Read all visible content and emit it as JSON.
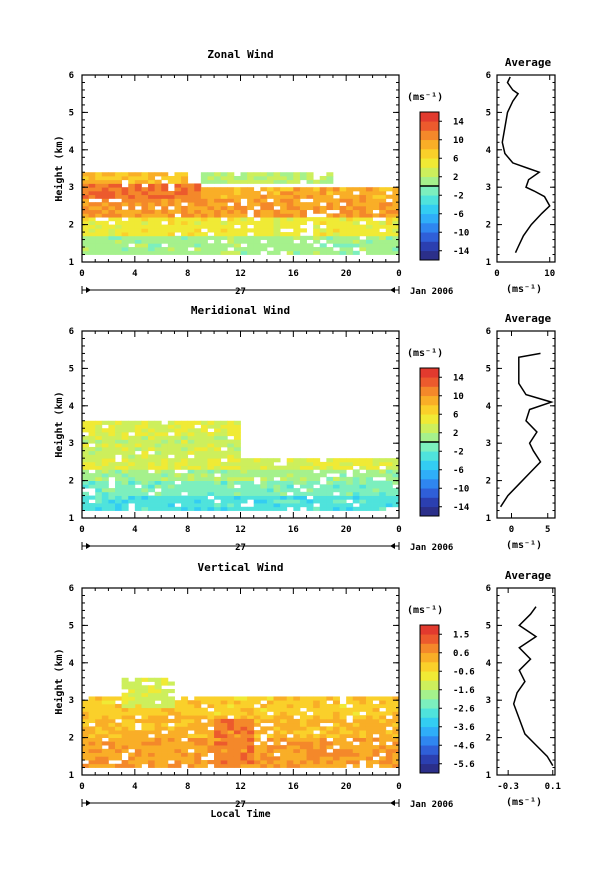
{
  "chart_data": [
    {
      "type": "heatmap",
      "title": "Zonal Wind",
      "ylabel": "Height (km)",
      "xlabel": "",
      "x_ticks": [
        "0",
        "4",
        "8",
        "12",
        "16",
        "20",
        "0"
      ],
      "y_ticks": [
        "1",
        "2",
        "3",
        "4",
        "5",
        "6"
      ],
      "xlim": [
        0,
        24
      ],
      "ylim": [
        1,
        6
      ],
      "date_day": "27",
      "date_label": "Jan 2006",
      "colorbar": {
        "unit": "(ms⁻¹)",
        "ticks": [
          "14",
          "10",
          "6",
          "2",
          "-2",
          "-6",
          "-10",
          "-14"
        ],
        "range": [
          -16,
          16
        ],
        "zero_line": true
      },
      "bands": [
        {
          "x": [
            0,
            24
          ],
          "y_lo": 1.2,
          "y_hi": 1.7,
          "value": 1
        },
        {
          "x": [
            0,
            24
          ],
          "y_lo": 1.7,
          "y_hi": 2.2,
          "value": 5
        },
        {
          "x": [
            0,
            24
          ],
          "y_lo": 2.2,
          "y_hi": 2.7,
          "value": 10
        },
        {
          "x": [
            0,
            9
          ],
          "y_lo": 2.7,
          "y_hi": 3.1,
          "value": 12
        },
        {
          "x": [
            9,
            24
          ],
          "y_lo": 2.7,
          "y_hi": 3.0,
          "value": 9
        },
        {
          "x": [
            0,
            8
          ],
          "y_lo": 3.1,
          "y_hi": 3.4,
          "value": 8
        },
        {
          "x": [
            9,
            19
          ],
          "y_lo": 3.1,
          "y_hi": 3.4,
          "value": 2
        }
      ],
      "average": {
        "title": "Average",
        "unit_label": "(ms⁻¹)",
        "x_ticks": [
          "0",
          "10"
        ],
        "xlim": [
          0,
          11
        ],
        "profile": [
          {
            "h": 1.25,
            "u": 3.5
          },
          {
            "h": 1.4,
            "u": 4
          },
          {
            "h": 1.7,
            "u": 5
          },
          {
            "h": 2.0,
            "u": 6.5
          },
          {
            "h": 2.3,
            "u": 8.5
          },
          {
            "h": 2.5,
            "u": 10
          },
          {
            "h": 2.75,
            "u": 9
          },
          {
            "h": 2.9,
            "u": 7
          },
          {
            "h": 3.0,
            "u": 5.5
          },
          {
            "h": 3.2,
            "u": 6
          },
          {
            "h": 3.4,
            "u": 8
          },
          {
            "h": 3.5,
            "u": 6
          },
          {
            "h": 3.65,
            "u": 3
          },
          {
            "h": 3.9,
            "u": 1.5
          },
          {
            "h": 4.2,
            "u": 1
          },
          {
            "h": 4.6,
            "u": 1.5
          },
          {
            "h": 5.0,
            "u": 2
          },
          {
            "h": 5.3,
            "u": 3
          },
          {
            "h": 5.5,
            "u": 4
          },
          {
            "h": 5.6,
            "u": 3
          },
          {
            "h": 5.8,
            "u": 2
          },
          {
            "h": 5.95,
            "u": 2.5
          }
        ]
      }
    },
    {
      "type": "heatmap",
      "title": "Meridional Wind",
      "ylabel": "Height (km)",
      "xlabel": "",
      "x_ticks": [
        "0",
        "4",
        "8",
        "12",
        "16",
        "20",
        "0"
      ],
      "y_ticks": [
        "1",
        "2",
        "3",
        "4",
        "5",
        "6"
      ],
      "xlim": [
        0,
        24
      ],
      "ylim": [
        1,
        6
      ],
      "date_day": "27",
      "date_label": "Jan 2006",
      "colorbar": {
        "unit": "(ms⁻¹)",
        "ticks": [
          "14",
          "10",
          "6",
          "2",
          "-2",
          "-6",
          "-10",
          "-14"
        ],
        "range": [
          -16,
          16
        ],
        "zero_line": true
      },
      "bands": [
        {
          "x": [
            0,
            24
          ],
          "y_lo": 1.2,
          "y_hi": 1.6,
          "value": -3
        },
        {
          "x": [
            0,
            24
          ],
          "y_lo": 1.6,
          "y_hi": 2.0,
          "value": -1
        },
        {
          "x": [
            0,
            24
          ],
          "y_lo": 2.0,
          "y_hi": 2.3,
          "value": 1
        },
        {
          "x": [
            0,
            24
          ],
          "y_lo": 2.3,
          "y_hi": 2.6,
          "value": 4
        },
        {
          "x": [
            0,
            12
          ],
          "y_lo": 2.6,
          "y_hi": 3.2,
          "value": 3
        },
        {
          "x": [
            0,
            12
          ],
          "y_lo": 3.2,
          "y_hi": 3.6,
          "value": 4
        }
      ],
      "average": {
        "title": "Average",
        "unit_label": "(ms⁻¹)",
        "x_ticks": [
          "0",
          "5"
        ],
        "xlim": [
          -2,
          6
        ],
        "profile": [
          {
            "h": 1.3,
            "u": -1.5
          },
          {
            "h": 1.6,
            "u": -0.5
          },
          {
            "h": 1.9,
            "u": 1
          },
          {
            "h": 2.2,
            "u": 2.5
          },
          {
            "h": 2.5,
            "u": 4
          },
          {
            "h": 2.8,
            "u": 3
          },
          {
            "h": 3.0,
            "u": 2.5
          },
          {
            "h": 3.3,
            "u": 3.5
          },
          {
            "h": 3.6,
            "u": 2
          },
          {
            "h": 3.9,
            "u": 2.5
          },
          {
            "h": 4.1,
            "u": 5.5
          },
          {
            "h": 4.3,
            "u": 2
          },
          {
            "h": 4.6,
            "u": 1
          },
          {
            "h": 5.3,
            "u": 1
          },
          {
            "h": 5.4,
            "u": 4
          }
        ]
      }
    },
    {
      "type": "heatmap",
      "title": "Vertical Wind",
      "ylabel": "Height (km)",
      "xlabel": "Local Time",
      "x_ticks": [
        "0",
        "4",
        "8",
        "12",
        "16",
        "20",
        "0"
      ],
      "y_ticks": [
        "1",
        "2",
        "3",
        "4",
        "5",
        "6"
      ],
      "xlim": [
        0,
        24
      ],
      "ylim": [
        1,
        6
      ],
      "date_day": "27",
      "date_label": "Jan 2006",
      "colorbar": {
        "unit": "(ms⁻¹)",
        "ticks": [
          "1.5",
          "0.6",
          "-0.6",
          "-1.6",
          "-2.6",
          "-3.6",
          "-4.6",
          "-5.6"
        ],
        "range": [
          -6.0,
          2.0
        ],
        "zero_line": false
      },
      "bands": [
        {
          "x": [
            0,
            24
          ],
          "y_lo": 1.2,
          "y_hi": 2.0,
          "value": 0.4
        },
        {
          "x": [
            0,
            24
          ],
          "y_lo": 2.0,
          "y_hi": 2.6,
          "value": 0.1
        },
        {
          "x": [
            0,
            24
          ],
          "y_lo": 2.6,
          "y_hi": 3.1,
          "value": -0.2
        },
        {
          "x": [
            3,
            7
          ],
          "y_lo": 2.8,
          "y_hi": 3.6,
          "value": -1.2
        },
        {
          "x": [
            10,
            13
          ],
          "y_lo": 1.3,
          "y_hi": 2.5,
          "value": 0.9
        }
      ],
      "average": {
        "title": "Average",
        "unit_label": "(ms⁻¹)",
        "x_ticks": [
          "-0.3",
          "0.1"
        ],
        "xlim": [
          -0.4,
          0.12
        ],
        "profile": [
          {
            "h": 1.25,
            "u": 0.1
          },
          {
            "h": 1.5,
            "u": 0.05
          },
          {
            "h": 1.8,
            "u": -0.05
          },
          {
            "h": 2.1,
            "u": -0.15
          },
          {
            "h": 2.5,
            "u": -0.2
          },
          {
            "h": 2.9,
            "u": -0.25
          },
          {
            "h": 3.2,
            "u": -0.22
          },
          {
            "h": 3.5,
            "u": -0.15
          },
          {
            "h": 3.8,
            "u": -0.2
          },
          {
            "h": 4.1,
            "u": -0.1
          },
          {
            "h": 4.4,
            "u": -0.2
          },
          {
            "h": 4.7,
            "u": -0.05
          },
          {
            "h": 5.0,
            "u": -0.2
          },
          {
            "h": 5.3,
            "u": -0.1
          },
          {
            "h": 5.5,
            "u": -0.05
          }
        ]
      }
    }
  ]
}
